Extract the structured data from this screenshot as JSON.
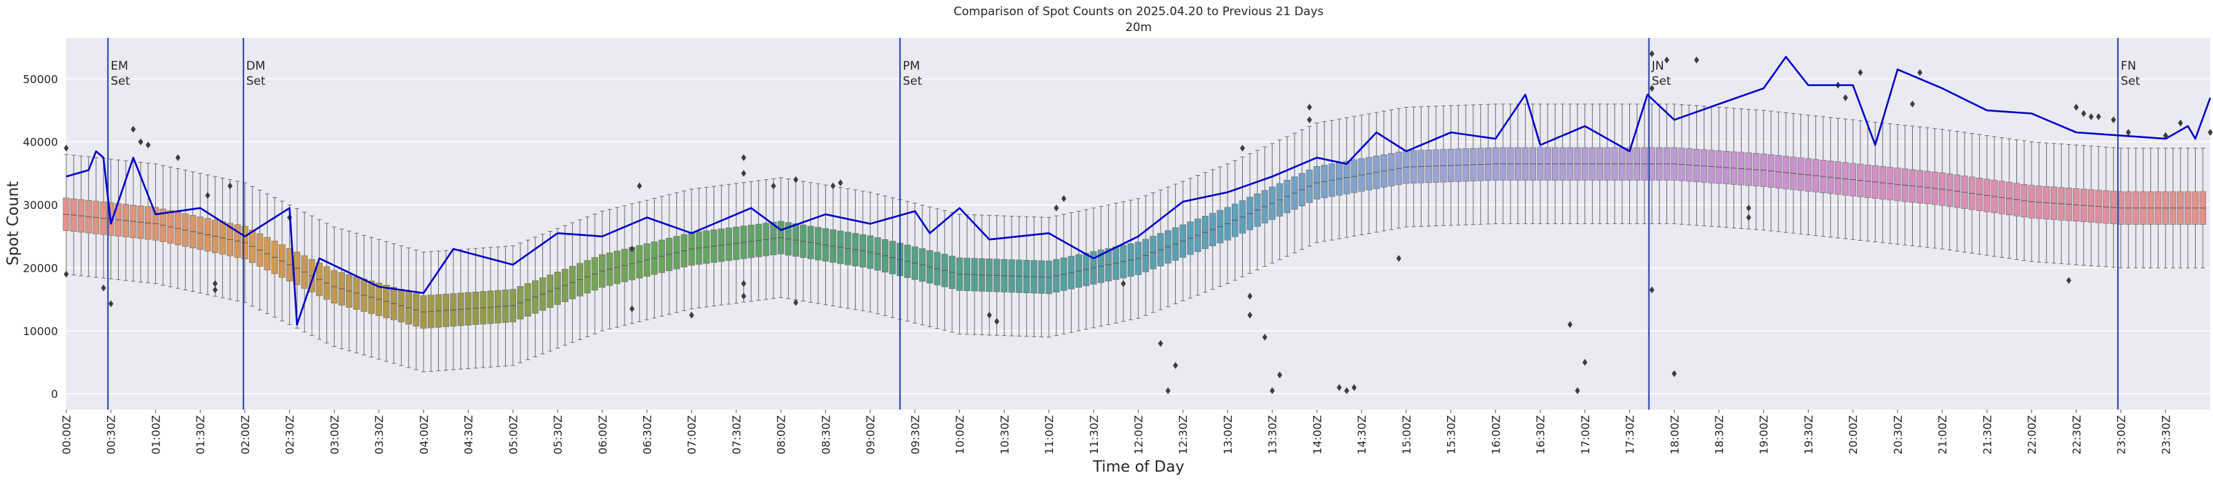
{
  "chart_data": {
    "type": "box+line",
    "title": "Comparison of Spot Counts on 2025.04.20 to Previous 21 Days",
    "subtitle": "20m",
    "xlabel": "Time of Day",
    "ylabel": "Spot Count",
    "ylim": [
      -2500,
      56500
    ],
    "yticks": [
      0,
      10000,
      20000,
      30000,
      40000,
      50000
    ],
    "ytick_labels": [
      "0",
      "10000",
      "20000",
      "30000",
      "40000",
      "50000"
    ],
    "xlim_minutes": [
      0,
      1440
    ],
    "bin_minutes": 5,
    "xtick_labels": [
      "00:00Z",
      "00:30Z",
      "01:00Z",
      "01:30Z",
      "02:00Z",
      "02:30Z",
      "03:00Z",
      "03:30Z",
      "04:00Z",
      "04:30Z",
      "05:00Z",
      "05:30Z",
      "06:00Z",
      "06:30Z",
      "07:00Z",
      "07:30Z",
      "08:00Z",
      "08:30Z",
      "09:00Z",
      "09:30Z",
      "10:00Z",
      "10:30Z",
      "11:00Z",
      "11:30Z",
      "12:00Z",
      "12:30Z",
      "13:00Z",
      "13:30Z",
      "14:00Z",
      "14:30Z",
      "15:00Z",
      "15:30Z",
      "16:00Z",
      "16:30Z",
      "17:00Z",
      "17:30Z",
      "18:00Z",
      "18:30Z",
      "19:00Z",
      "19:30Z",
      "20:00Z",
      "20:30Z",
      "21:00Z",
      "21:30Z",
      "22:00Z",
      "22:30Z",
      "23:00Z",
      "23:30Z"
    ],
    "grid": true,
    "legend": "none",
    "box_median_profile": [
      {
        "t": 0,
        "v": 28500
      },
      {
        "t": 60,
        "v": 27000
      },
      {
        "t": 120,
        "v": 24000
      },
      {
        "t": 180,
        "v": 17000
      },
      {
        "t": 240,
        "v": 13000
      },
      {
        "t": 300,
        "v": 14000
      },
      {
        "t": 360,
        "v": 19500
      },
      {
        "t": 420,
        "v": 23000
      },
      {
        "t": 480,
        "v": 24800
      },
      {
        "t": 540,
        "v": 22500
      },
      {
        "t": 600,
        "v": 19000
      },
      {
        "t": 660,
        "v": 18500
      },
      {
        "t": 720,
        "v": 21500
      },
      {
        "t": 780,
        "v": 27000
      },
      {
        "t": 840,
        "v": 33500
      },
      {
        "t": 900,
        "v": 36000
      },
      {
        "t": 960,
        "v": 36500
      },
      {
        "t": 1020,
        "v": 36500
      },
      {
        "t": 1080,
        "v": 36500
      },
      {
        "t": 1140,
        "v": 35500
      },
      {
        "t": 1200,
        "v": 34000
      },
      {
        "t": 1260,
        "v": 32500
      },
      {
        "t": 1320,
        "v": 30500
      },
      {
        "t": 1380,
        "v": 29500
      },
      {
        "t": 1440,
        "v": 29500
      }
    ],
    "box_iqr_half_width": 2600,
    "box_whisker_extent": 9500,
    "today_series": {
      "name": "2025.04.20",
      "color": "#0000cc",
      "points": [
        {
          "t": 0,
          "v": 34500
        },
        {
          "t": 15,
          "v": 35500
        },
        {
          "t": 20,
          "v": 38500
        },
        {
          "t": 25,
          "v": 37500
        },
        {
          "t": 30,
          "v": 27000
        },
        {
          "t": 45,
          "v": 37500
        },
        {
          "t": 60,
          "v": 28500
        },
        {
          "t": 90,
          "v": 29500
        },
        {
          "t": 120,
          "v": 25000
        },
        {
          "t": 150,
          "v": 29500
        },
        {
          "t": 155,
          "v": 11000
        },
        {
          "t": 170,
          "v": 21500
        },
        {
          "t": 210,
          "v": 17000
        },
        {
          "t": 240,
          "v": 16000
        },
        {
          "t": 260,
          "v": 23000
        },
        {
          "t": 300,
          "v": 20500
        },
        {
          "t": 330,
          "v": 25500
        },
        {
          "t": 360,
          "v": 25000
        },
        {
          "t": 390,
          "v": 28000
        },
        {
          "t": 420,
          "v": 25500
        },
        {
          "t": 460,
          "v": 29500
        },
        {
          "t": 480,
          "v": 26000
        },
        {
          "t": 510,
          "v": 28500
        },
        {
          "t": 540,
          "v": 27000
        },
        {
          "t": 570,
          "v": 29000
        },
        {
          "t": 580,
          "v": 25500
        },
        {
          "t": 600,
          "v": 29500
        },
        {
          "t": 620,
          "v": 24500
        },
        {
          "t": 660,
          "v": 25500
        },
        {
          "t": 690,
          "v": 21500
        },
        {
          "t": 720,
          "v": 25000
        },
        {
          "t": 750,
          "v": 30500
        },
        {
          "t": 780,
          "v": 32000
        },
        {
          "t": 810,
          "v": 34500
        },
        {
          "t": 840,
          "v": 37500
        },
        {
          "t": 860,
          "v": 36500
        },
        {
          "t": 880,
          "v": 41500
        },
        {
          "t": 900,
          "v": 38500
        },
        {
          "t": 930,
          "v": 41500
        },
        {
          "t": 960,
          "v": 40500
        },
        {
          "t": 980,
          "v": 47500
        },
        {
          "t": 990,
          "v": 39500
        },
        {
          "t": 1020,
          "v": 42500
        },
        {
          "t": 1050,
          "v": 38500
        },
        {
          "t": 1062,
          "v": 47500
        },
        {
          "t": 1080,
          "v": 43500
        },
        {
          "t": 1110,
          "v": 46000
        },
        {
          "t": 1140,
          "v": 48500
        },
        {
          "t": 1155,
          "v": 53500
        },
        {
          "t": 1170,
          "v": 49000
        },
        {
          "t": 1200,
          "v": 49000
        },
        {
          "t": 1215,
          "v": 39500
        },
        {
          "t": 1230,
          "v": 51500
        },
        {
          "t": 1260,
          "v": 48500
        },
        {
          "t": 1290,
          "v": 45000
        },
        {
          "t": 1320,
          "v": 44500
        },
        {
          "t": 1350,
          "v": 41500
        },
        {
          "t": 1380,
          "v": 41000
        },
        {
          "t": 1410,
          "v": 40500
        },
        {
          "t": 1425,
          "v": 42500
        },
        {
          "t": 1430,
          "v": 40500
        },
        {
          "t": 1440,
          "v": 47000
        }
      ]
    },
    "outliers": [
      {
        "t": 0,
        "v": 39000
      },
      {
        "t": 0,
        "v": 19000
      },
      {
        "t": 25,
        "v": 16800
      },
      {
        "t": 30,
        "v": 14300
      },
      {
        "t": 45,
        "v": 42000
      },
      {
        "t": 50,
        "v": 40000
      },
      {
        "t": 55,
        "v": 39500
      },
      {
        "t": 75,
        "v": 37500
      },
      {
        "t": 95,
        "v": 31500
      },
      {
        "t": 100,
        "v": 17500
      },
      {
        "t": 100,
        "v": 16500
      },
      {
        "t": 110,
        "v": 33000
      },
      {
        "t": 150,
        "v": 28000
      },
      {
        "t": 380,
        "v": 13500
      },
      {
        "t": 380,
        "v": 23000
      },
      {
        "t": 385,
        "v": 33000
      },
      {
        "t": 420,
        "v": 12500
      },
      {
        "t": 455,
        "v": 37500
      },
      {
        "t": 455,
        "v": 35000
      },
      {
        "t": 455,
        "v": 17500
      },
      {
        "t": 455,
        "v": 15500
      },
      {
        "t": 475,
        "v": 33000
      },
      {
        "t": 490,
        "v": 34000
      },
      {
        "t": 490,
        "v": 14500
      },
      {
        "t": 515,
        "v": 33000
      },
      {
        "t": 520,
        "v": 33500
      },
      {
        "t": 620,
        "v": 12500
      },
      {
        "t": 625,
        "v": 11500
      },
      {
        "t": 665,
        "v": 29500
      },
      {
        "t": 670,
        "v": 31000
      },
      {
        "t": 710,
        "v": 17500
      },
      {
        "t": 735,
        "v": 8000
      },
      {
        "t": 740,
        "v": 500
      },
      {
        "t": 745,
        "v": 4500
      },
      {
        "t": 790,
        "v": 39000
      },
      {
        "t": 795,
        "v": 12500
      },
      {
        "t": 795,
        "v": 15500
      },
      {
        "t": 805,
        "v": 9000
      },
      {
        "t": 810,
        "v": 500
      },
      {
        "t": 815,
        "v": 3000
      },
      {
        "t": 835,
        "v": 45500
      },
      {
        "t": 835,
        "v": 43500
      },
      {
        "t": 855,
        "v": 1000
      },
      {
        "t": 860,
        "v": 500
      },
      {
        "t": 865,
        "v": 1000
      },
      {
        "t": 895,
        "v": 21500
      },
      {
        "t": 1010,
        "v": 11000
      },
      {
        "t": 1015,
        "v": 500
      },
      {
        "t": 1020,
        "v": 5000
      },
      {
        "t": 1065,
        "v": 54000
      },
      {
        "t": 1065,
        "v": 48500
      },
      {
        "t": 1065,
        "v": 16500
      },
      {
        "t": 1075,
        "v": 53000
      },
      {
        "t": 1080,
        "v": 3200
      },
      {
        "t": 1095,
        "v": 53000
      },
      {
        "t": 1130,
        "v": 28000
      },
      {
        "t": 1130,
        "v": 29500
      },
      {
        "t": 1190,
        "v": 49000
      },
      {
        "t": 1195,
        "v": 47000
      },
      {
        "t": 1205,
        "v": 51000
      },
      {
        "t": 1240,
        "v": 46000
      },
      {
        "t": 1245,
        "v": 51000
      },
      {
        "t": 1350,
        "v": 45500
      },
      {
        "t": 1355,
        "v": 44500
      },
      {
        "t": 1360,
        "v": 44000
      },
      {
        "t": 1365,
        "v": 44000
      },
      {
        "t": 1375,
        "v": 43500
      },
      {
        "t": 1385,
        "v": 41500
      },
      {
        "t": 1345,
        "v": 18000
      },
      {
        "t": 1410,
        "v": 41000
      },
      {
        "t": 1420,
        "v": 43000
      },
      {
        "t": 1440,
        "v": 41500
      }
    ],
    "event_lines": [
      {
        "t": 28,
        "label_top": "EM",
        "label_bottom": "Set"
      },
      {
        "t": 119,
        "label_top": "DM",
        "label_bottom": "Set"
      },
      {
        "t": 560,
        "label_top": "PM",
        "label_bottom": "Set"
      },
      {
        "t": 1063,
        "label_top": "JN",
        "label_bottom": "Set"
      },
      {
        "t": 1378,
        "label_top": "FN",
        "label_bottom": "Set"
      }
    ],
    "palette": [
      "#e1928c",
      "#d59856",
      "#9a9a4a",
      "#6aa65a",
      "#58a07a",
      "#55a09a",
      "#5ea0bc",
      "#9aa4d6",
      "#b79ed6",
      "#cf90cc",
      "#dc8fae",
      "#e1928c"
    ],
    "colors": {
      "plot_background": "#eaeaf2",
      "grid": "#ffffff",
      "event_line": "#1f3f99",
      "today_line": "#0000cc"
    }
  }
}
